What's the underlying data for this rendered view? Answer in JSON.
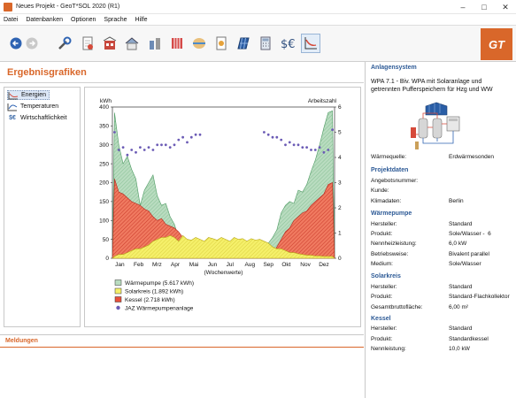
{
  "window": {
    "title": "Neues Projekt - GeoT*SOL 2020 (R1)"
  },
  "menu": [
    "Datei",
    "Datenbanken",
    "Optionen",
    "Sprache",
    "Hilfe"
  ],
  "toolbar": {
    "buttons": [
      "back-arrow-icon",
      "forward-arrow-icon",
      "tools-icon",
      "document-icon",
      "building-icon",
      "house-icon",
      "pump-icon",
      "radiator-icon",
      "storage-tank-icon",
      "settings-document-icon",
      "solar-panel-icon",
      "calculator-icon",
      "currency-icon",
      "chart-icon"
    ],
    "logo_text": "GT"
  },
  "page": {
    "title": "Ergebnisgrafiken"
  },
  "nav": [
    {
      "label": "Energien",
      "selected": true
    },
    {
      "label": "Temperaturen",
      "selected": false
    },
    {
      "label": "Wirtschaftlichkeit",
      "selected": false
    }
  ],
  "messages": {
    "title": "Meldungen"
  },
  "chart_data": {
    "type": "area",
    "ylabel_left": "kWh",
    "ylabel_right": "Arbeitszahl",
    "xlabel": "(Wochenwerte)",
    "ylim_left": [
      0,
      400
    ],
    "ylim_right": [
      0,
      6
    ],
    "yticks_left": [
      "0",
      "50",
      "100",
      "150",
      "200",
      "250",
      "300",
      "350",
      "400"
    ],
    "yticks_right": [
      "0",
      "1",
      "2",
      "3",
      "4",
      "5",
      "6"
    ],
    "months": [
      "Jan",
      "Feb",
      "Mrz",
      "Apr",
      "Mai",
      "Jun",
      "Jul",
      "Aug",
      "Sep",
      "Okt",
      "Nov",
      "Dez"
    ],
    "series": [
      {
        "name": "Wärmepumpe (5.617 kWh)",
        "color": "#b9dcc0",
        "values": [
          385,
          300,
          250,
          270,
          235,
          210,
          140,
          180,
          200,
          220,
          165,
          140,
          145,
          110,
          90,
          55,
          30,
          20,
          20,
          12,
          12,
          12,
          12,
          12,
          12,
          12,
          12,
          12,
          12,
          12,
          12,
          12,
          12,
          12,
          15,
          25,
          40,
          55,
          75,
          120,
          140,
          150,
          145,
          180,
          175,
          195,
          230,
          260,
          300,
          345,
          385,
          390
        ]
      },
      {
        "name": "Solarkreis (1.892 kWh)",
        "color": "#f5f06a",
        "values": [
          5,
          10,
          10,
          15,
          20,
          25,
          25,
          30,
          35,
          45,
          50,
          55,
          55,
          60,
          55,
          45,
          60,
          50,
          48,
          55,
          50,
          45,
          55,
          52,
          48,
          55,
          50,
          45,
          55,
          50,
          52,
          45,
          52,
          48,
          50,
          45,
          40,
          30,
          25,
          25,
          20,
          15,
          15,
          12,
          10,
          8,
          8,
          6,
          6,
          5,
          5,
          5
        ]
      },
      {
        "name": "Kessel (2.718 kWh)",
        "color": "#e8503c",
        "values": [
          210,
          175,
          170,
          160,
          150,
          145,
          140,
          130,
          125,
          110,
          100,
          105,
          90,
          85,
          80,
          70,
          55,
          40,
          20,
          8,
          5,
          2,
          0,
          0,
          0,
          0,
          0,
          0,
          0,
          0,
          0,
          0,
          0,
          0,
          0,
          0,
          5,
          10,
          30,
          50,
          70,
          80,
          100,
          110,
          120,
          125,
          140,
          150,
          160,
          170,
          195,
          200
        ]
      },
      {
        "name": "JAZ Wärmepumpenanlage",
        "color": "#6b5bb5",
        "values": [
          5.0,
          4.3,
          4.4,
          4.1,
          4.3,
          4.2,
          4.4,
          4.3,
          4.4,
          4.3,
          4.5,
          4.5,
          4.5,
          4.4,
          4.5,
          4.7,
          4.8,
          4.6,
          4.8,
          4.9,
          4.9,
          null,
          null,
          null,
          null,
          null,
          null,
          null,
          null,
          null,
          null,
          null,
          null,
          null,
          null,
          5.0,
          4.9,
          4.8,
          4.8,
          4.7,
          4.5,
          4.6,
          4.5,
          4.5,
          4.4,
          4.4,
          4.3,
          4.3,
          4.4,
          4.2,
          4.3,
          5.1
        ]
      }
    ]
  },
  "right": {
    "anlagensystem_title": "Anlagensystem",
    "anlagensystem_desc": "WPA 7.1 - Biv. WPA mit Solaranlage und getrennten Pufferspeichern für Hzg und WW",
    "waermequelle": {
      "label": "Wärmequelle:",
      "value": "Erdwärmesonden"
    },
    "projektdaten": {
      "title": "Projektdaten",
      "rows": [
        {
          "label": "Angebotsnummer:",
          "value": ""
        },
        {
          "label": "Kunde:",
          "value": ""
        },
        {
          "label": "Klimadaten:",
          "value": "Berlin"
        }
      ]
    },
    "waermepumpe": {
      "title": "Wärmepumpe",
      "rows": [
        {
          "label": "Hersteller:",
          "value": "Standard"
        },
        {
          "label": "Produkt:",
          "value": "Sole/Wasser -  6"
        },
        {
          "label": "Nennheizleistung:",
          "value": "6,0 kW"
        },
        {
          "label": "Betriebsweise:",
          "value": "Bivalent parallel"
        },
        {
          "label": "Medium:",
          "value": "Sole/Wasser"
        }
      ]
    },
    "solarkreis": {
      "title": "Solarkreis",
      "rows": [
        {
          "label": "Hersteller:",
          "value": "Standard"
        },
        {
          "label": "Produkt:",
          "value": "Standard-Flachkollektor"
        },
        {
          "label": "Gesamtbruttofläche:",
          "value": "6,00 m²"
        }
      ]
    },
    "kessel": {
      "title": "Kessel",
      "rows": [
        {
          "label": "Hersteller:",
          "value": "Standard"
        },
        {
          "label": "Produkt:",
          "value": "Standardkessel"
        },
        {
          "label": "Nennleistung:",
          "value": "10,0 kW"
        }
      ]
    }
  }
}
